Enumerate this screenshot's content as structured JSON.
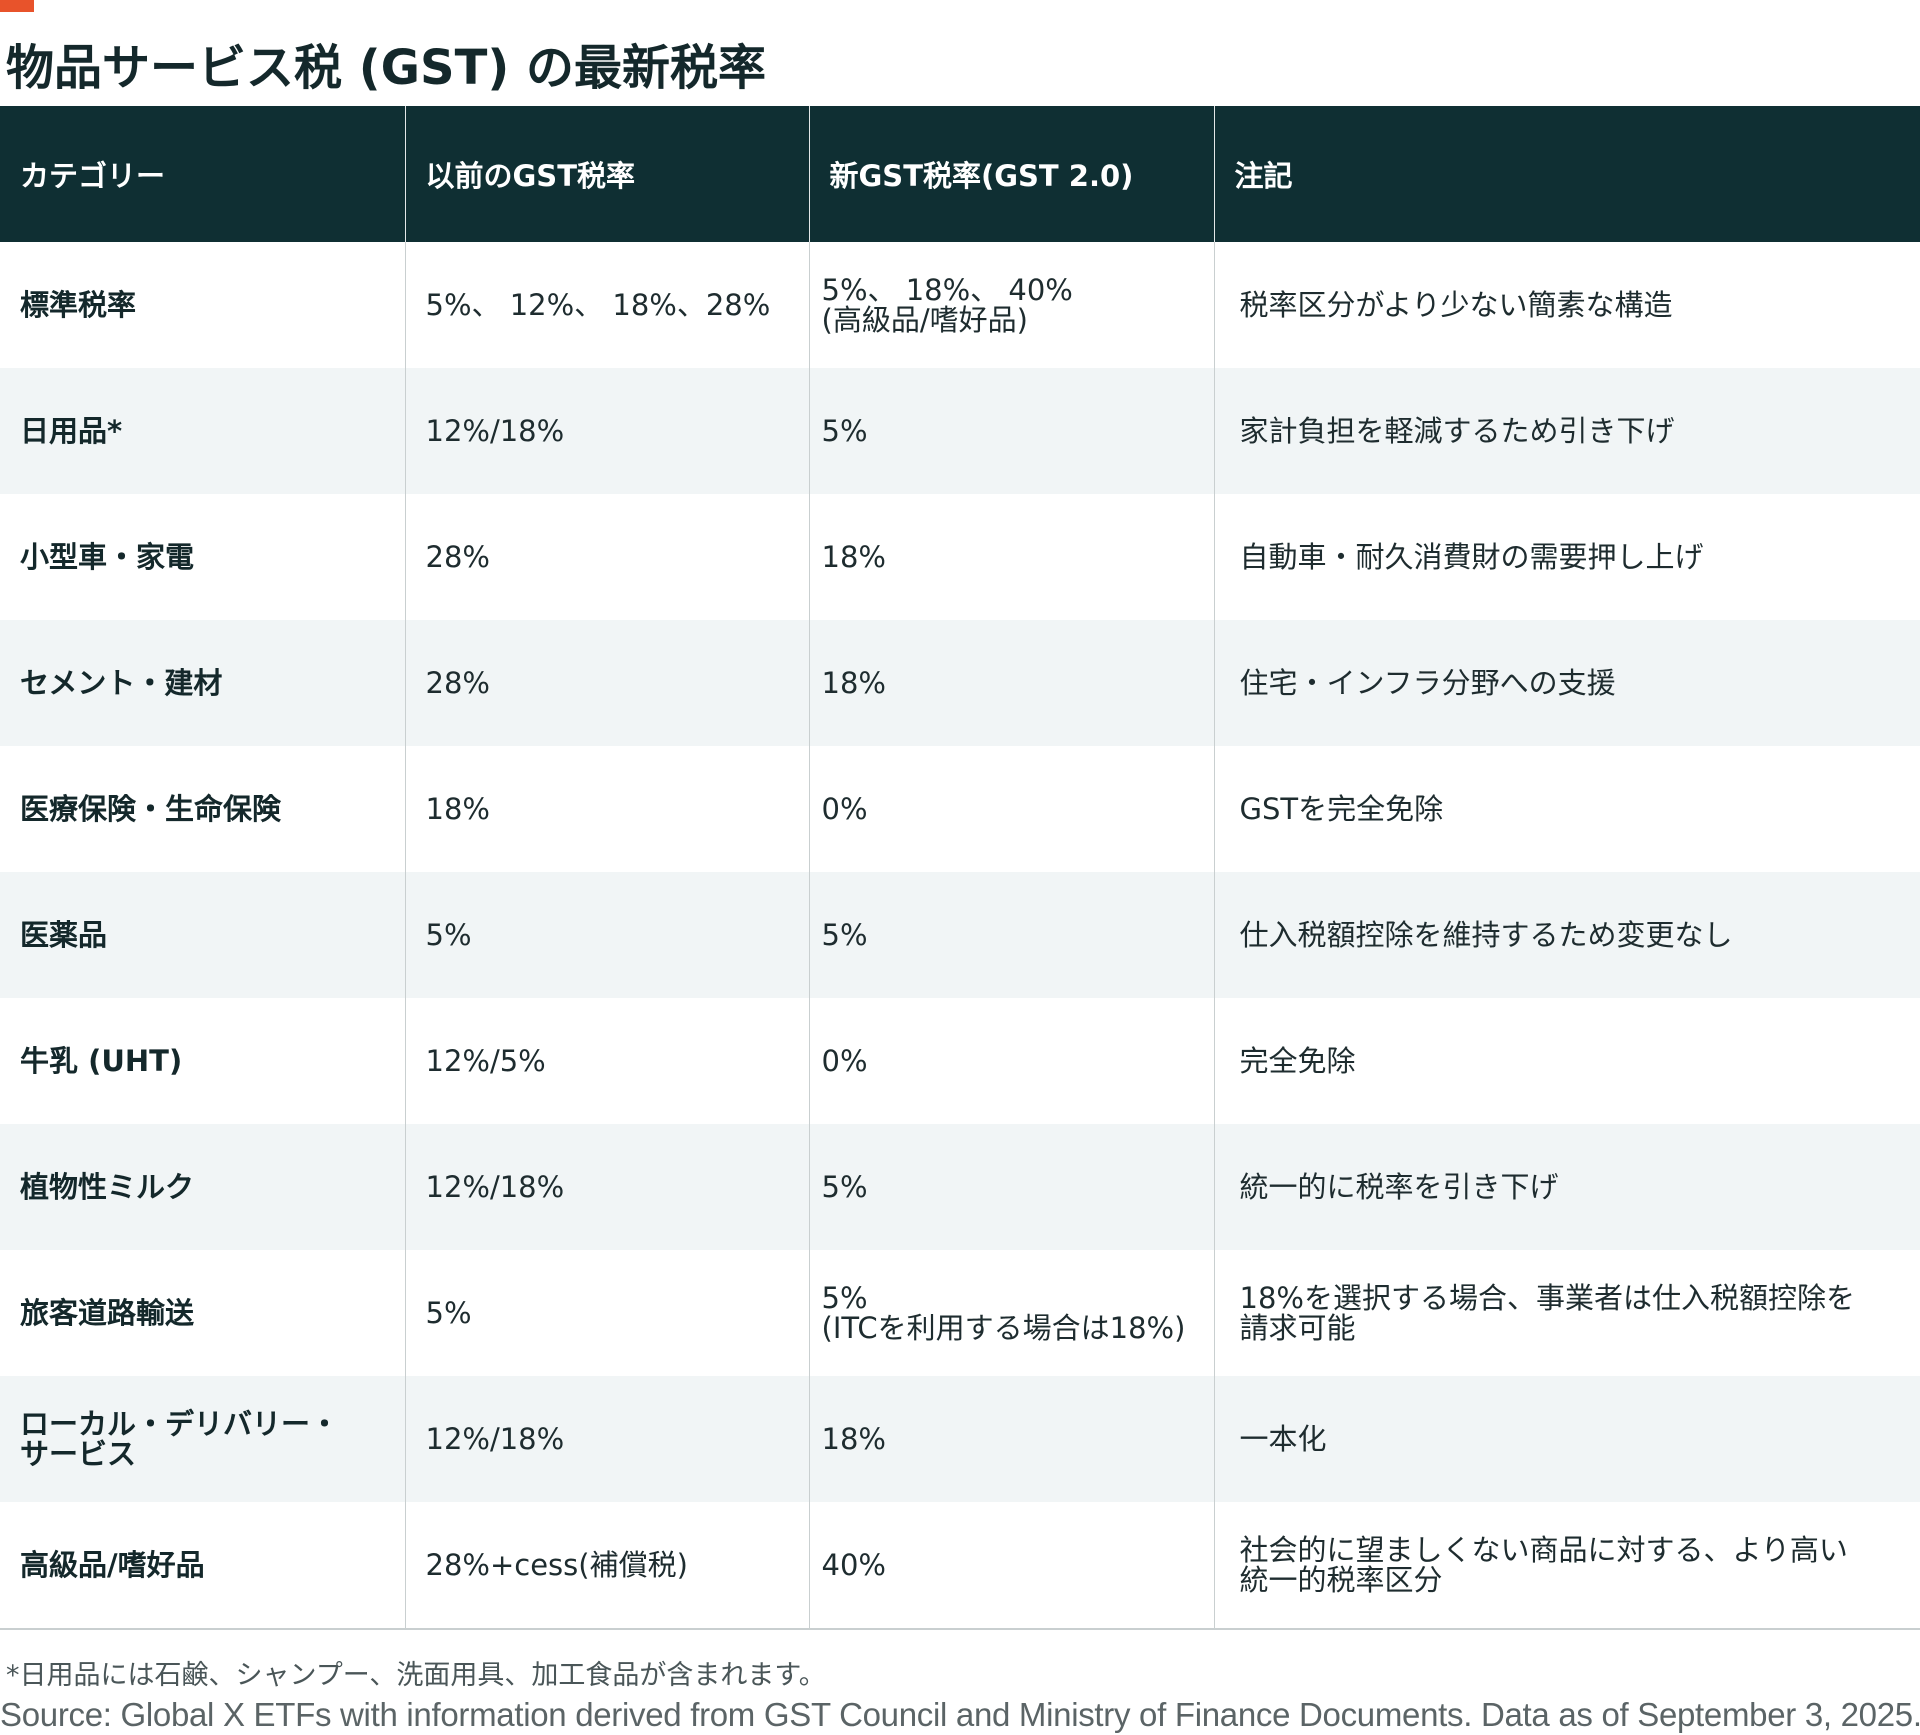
{
  "title": "物品サービス税 (GST) の最新税率",
  "colors": {
    "accent": "#e8532b",
    "header_bg": "#0f2f33",
    "stripe": "#f1f5f6"
  },
  "table": {
    "headers": [
      "カテゴリー",
      "以前のGST税率",
      "新GST税率(GST 2.0)",
      "注記"
    ],
    "rows": [
      {
        "category": [
          "標準税率"
        ],
        "old_rate": [
          "5%、 12%、 18%、28%"
        ],
        "new_rate": [
          "5%、 18%、 40%",
          "(高級品/嗜好品)"
        ],
        "note": [
          "税率区分がより少ない簡素な構造"
        ]
      },
      {
        "category": [
          "日用品*"
        ],
        "old_rate": [
          "12%/18%"
        ],
        "new_rate": [
          "5%"
        ],
        "note": [
          "家計負担を軽減するため引き下げ"
        ]
      },
      {
        "category": [
          "小型車・家電"
        ],
        "old_rate": [
          "28%"
        ],
        "new_rate": [
          "18%"
        ],
        "note": [
          "自動車・耐久消費財の需要押し上げ"
        ]
      },
      {
        "category": [
          "セメント・建材"
        ],
        "old_rate": [
          "28%"
        ],
        "new_rate": [
          "18%"
        ],
        "note": [
          "住宅・インフラ分野への支援"
        ]
      },
      {
        "category": [
          "医療保険・生命保険"
        ],
        "old_rate": [
          "18%"
        ],
        "new_rate": [
          "0%"
        ],
        "note": [
          "GSTを完全免除"
        ]
      },
      {
        "category": [
          "医薬品"
        ],
        "old_rate": [
          "5%"
        ],
        "new_rate": [
          "5%"
        ],
        "note": [
          "仕入税額控除を維持するため変更なし"
        ]
      },
      {
        "category": [
          "牛乳 (UHT)"
        ],
        "old_rate": [
          "12%/5%"
        ],
        "new_rate": [
          "0%"
        ],
        "note": [
          "完全免除"
        ]
      },
      {
        "category": [
          "植物性ミルク"
        ],
        "old_rate": [
          "12%/18%"
        ],
        "new_rate": [
          "5%"
        ],
        "note": [
          "統一的に税率を引き下げ"
        ]
      },
      {
        "category": [
          "旅客道路輸送"
        ],
        "old_rate": [
          "5%"
        ],
        "new_rate": [
          "5%",
          "(ITCを利用する場合は18%)"
        ],
        "note": [
          "18%を選択する場合、事業者は仕入税額控除を",
          "請求可能"
        ]
      },
      {
        "category": [
          "ローカル・デリバリー・",
          "サービス"
        ],
        "old_rate": [
          "12%/18%"
        ],
        "new_rate": [
          "18%"
        ],
        "note": [
          "一本化"
        ]
      },
      {
        "category": [
          "高級品/嗜好品"
        ],
        "old_rate": [
          "28%+cess(補償税)"
        ],
        "new_rate": [
          "40%"
        ],
        "note": [
          "社会的に望ましくない商品に対する、より高い",
          "統一的税率区分"
        ]
      }
    ]
  },
  "footnote": "*日用品には石鹸、シャンプー、洗面用具、加工食品が含まれます。",
  "source": "Source: Global X ETFs with information derived from GST Council and Ministry of Finance Documents. Data as of September 3, 2025."
}
